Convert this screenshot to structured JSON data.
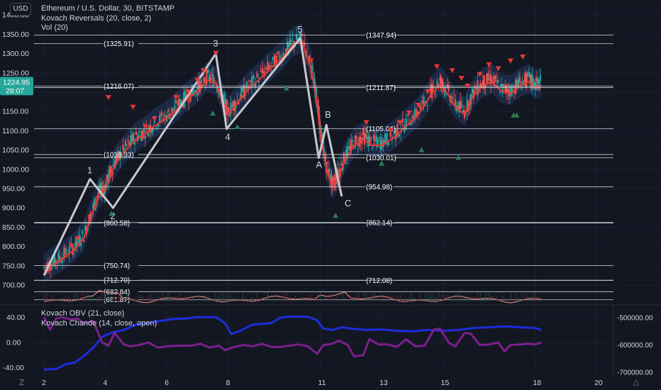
{
  "header": {
    "currency": "USD",
    "title": "Ethereum / U.S. Dollar, 30, BITSTAMP",
    "indicator_1": "Kovach Reversals (20, close, 2)",
    "indicator_2": "Vol (20)"
  },
  "lower_pane": {
    "indicator_1": "Kovach OBV (21, close)",
    "indicator_2": "Kovach Chande (14, close, open)"
  },
  "price_badge": {
    "price": "1224.95",
    "countdown": "28:07"
  },
  "bottom_icons": {
    "left": "Z",
    "right": "△"
  },
  "colors": {
    "background": "#131722",
    "candle_up": "#26a69a",
    "candle_down": "#ef5350",
    "band_fill": "#2a4a86",
    "moving_average": "#e53935",
    "wave_line": "#c8c8cc",
    "volume_line": "#e0837a",
    "obv_line": "#1e2ddb",
    "chande_line": "#7a1f8c",
    "price_badge": "#26a69a"
  },
  "chart_data": [
    {
      "type": "candlestick",
      "title": "Ethereum / U.S. Dollar, 30, BITSTAMP",
      "x_ticks": [
        "2",
        "4",
        "6",
        "8",
        "11",
        "13",
        "15",
        "18",
        "20"
      ],
      "y_ticks": [
        "700.00",
        "750.00",
        "800.00",
        "850.00",
        "900.00",
        "950.00",
        "1000.00",
        "1050.00",
        "1100.00",
        "1150.00",
        "1200.00",
        "1250.00",
        "1300.00",
        "1350.00",
        "1400.00"
      ],
      "ylim": [
        640,
        1405
      ],
      "last_price": 1224.95,
      "price_trend": [
        [
          2,
          745
        ],
        [
          2.3,
          760
        ],
        [
          2.6,
          775
        ],
        [
          3,
          800
        ],
        [
          3.3,
          830
        ],
        [
          3.6,
          900
        ],
        [
          3.8,
          940
        ],
        [
          4.0,
          955
        ],
        [
          4.2,
          1000
        ],
        [
          4.4,
          1030
        ],
        [
          4.7,
          1060
        ],
        [
          5.0,
          1085
        ],
        [
          5.3,
          1100
        ],
        [
          5.6,
          1120
        ],
        [
          6.0,
          1140
        ],
        [
          6.3,
          1160
        ],
        [
          6.6,
          1185
        ],
        [
          7.0,
          1210
        ],
        [
          7.3,
          1240
        ],
        [
          7.6,
          1230
        ],
        [
          7.8,
          1190
        ],
        [
          8.0,
          1150
        ],
        [
          8.3,
          1180
        ],
        [
          8.6,
          1210
        ],
        [
          9.0,
          1240
        ],
        [
          9.4,
          1270
        ],
        [
          9.8,
          1300
        ],
        [
          10.1,
          1330
        ],
        [
          10.4,
          1340
        ],
        [
          10.7,
          1270
        ],
        [
          10.9,
          1180
        ],
        [
          11.0,
          1100
        ],
        [
          11.2,
          1010
        ],
        [
          11.4,
          960
        ],
        [
          11.6,
          990
        ],
        [
          11.8,
          1030
        ],
        [
          12.1,
          1070
        ],
        [
          12.4,
          1085
        ],
        [
          12.7,
          1070
        ],
        [
          13.0,
          1070
        ],
        [
          13.4,
          1090
        ],
        [
          13.8,
          1120
        ],
        [
          14.2,
          1150
        ],
        [
          14.6,
          1200
        ],
        [
          14.9,
          1230
        ],
        [
          15.1,
          1210
        ],
        [
          15.4,
          1170
        ],
        [
          15.7,
          1150
        ],
        [
          16.0,
          1200
        ],
        [
          16.3,
          1225
        ],
        [
          16.6,
          1235
        ],
        [
          16.9,
          1210
        ],
        [
          17.2,
          1205
        ],
        [
          17.5,
          1225
        ],
        [
          17.8,
          1235
        ],
        [
          18.0,
          1220
        ],
        [
          18.2,
          1225
        ]
      ],
      "horizontal_levels": [
        {
          "label": "(1347.94)",
          "value": 1347.94
        },
        {
          "label": "(1325.91)",
          "value": 1325.91
        },
        {
          "label": "(1216.07)",
          "value": 1216.07
        },
        {
          "label": "(1211.87)",
          "value": 1211.87
        },
        {
          "label": "(1105.04)",
          "value": 1105.04
        },
        {
          "label": "(1038.33)",
          "value": 1038.33
        },
        {
          "label": "(1030.01)",
          "value": 1030.01
        },
        {
          "label": "(954.98)",
          "value": 954.98
        },
        {
          "label": "(862.14)",
          "value": 862.14
        },
        {
          "label": "(860.58)",
          "value": 860.58
        },
        {
          "label": "(750.74)",
          "value": 750.74
        },
        {
          "label": "(712.70)",
          "value": 712.7
        },
        {
          "label": "(712.08)",
          "value": 712.08
        },
        {
          "label": "(682.84)",
          "value": 682.84
        },
        {
          "label": "(661.87)",
          "value": 661.87
        }
      ],
      "waves": [
        {
          "label": "",
          "x": 2.0,
          "y": 725
        },
        {
          "label": "1",
          "x": 3.5,
          "y": 975
        },
        {
          "label": "2",
          "x": 4.25,
          "y": 900
        },
        {
          "label": "3",
          "x": 7.6,
          "y": 1300
        },
        {
          "label": "4",
          "x": 7.95,
          "y": 1105
        },
        {
          "label": "5",
          "x": 10.35,
          "y": 1340
        },
        {
          "label": "A",
          "x": 10.95,
          "y": 1030
        },
        {
          "label": "B",
          "x": 11.2,
          "y": 1115
        },
        {
          "label": "C",
          "x": 11.7,
          "y": 930
        }
      ],
      "sell_markers": [
        [
          2.9,
          800
        ],
        [
          3.1,
          820
        ],
        [
          4.1,
          1185
        ],
        [
          4.9,
          1160
        ],
        [
          5.3,
          1110
        ],
        [
          5.6,
          1130
        ],
        [
          6.3,
          1185
        ],
        [
          6.7,
          1200
        ],
        [
          7.0,
          1230
        ],
        [
          7.2,
          1255
        ],
        [
          7.6,
          1300
        ],
        [
          10.7,
          1280
        ],
        [
          12.5,
          1120
        ],
        [
          13.3,
          1100
        ],
        [
          13.6,
          1120
        ],
        [
          13.9,
          1145
        ],
        [
          14.2,
          1165
        ],
        [
          14.5,
          1200
        ],
        [
          14.8,
          1265
        ],
        [
          15.3,
          1255
        ],
        [
          15.6,
          1235
        ],
        [
          15.8,
          1215
        ],
        [
          16.2,
          1245
        ],
        [
          16.5,
          1270
        ],
        [
          16.8,
          1260
        ],
        [
          17.2,
          1280
        ],
        [
          17.6,
          1290
        ]
      ],
      "buy_markers": [
        [
          4.2,
          885
        ],
        [
          7.5,
          1145
        ],
        [
          8.3,
          1110
        ],
        [
          9.9,
          1210
        ],
        [
          11.5,
          880
        ],
        [
          13.0,
          1015
        ],
        [
          14.3,
          1050
        ],
        [
          15.5,
          1030
        ],
        [
          17.3,
          1140
        ],
        [
          17.4,
          1140
        ]
      ]
    },
    {
      "type": "line",
      "title": "Vol (20)",
      "note": "volume moving average drawn near price 640–720 band"
    },
    {
      "type": "line",
      "title": "Kovach OBV (21, close) / Kovach Chande (14, close, open)",
      "left_y_ticks": [
        "40.00",
        "0.00",
        "-40.00"
      ],
      "left_ylim": [
        -45,
        45
      ],
      "right_y_ticks": [
        "-500000.00",
        "-600000.00",
        "-700000.00"
      ],
      "right_ylim": [
        -710000,
        -490000
      ],
      "series": [
        {
          "name": "Kovach OBV (21, close)",
          "axis": "right",
          "values": [
            [
              2,
              -690000
            ],
            [
              2.4,
              -688000
            ],
            [
              2.7,
              -670000
            ],
            [
              3.0,
              -665000
            ],
            [
              3.3,
              -640000
            ],
            [
              3.6,
              -610000
            ],
            [
              3.9,
              -570000
            ],
            [
              4.2,
              -555000
            ],
            [
              4.6,
              -545000
            ],
            [
              5.0,
              -525000
            ],
            [
              5.4,
              -520000
            ],
            [
              5.8,
              -512000
            ],
            [
              6.2,
              -505000
            ],
            [
              6.6,
              -503000
            ],
            [
              7.0,
              -498000
            ],
            [
              7.6,
              -498000
            ],
            [
              7.9,
              -520000
            ],
            [
              8.1,
              -560000
            ],
            [
              8.4,
              -548000
            ],
            [
              8.8,
              -525000
            ],
            [
              9.4,
              -520000
            ],
            [
              9.7,
              -500000
            ],
            [
              10.0,
              -496000
            ],
            [
              10.6,
              -497000
            ],
            [
              10.9,
              -510000
            ],
            [
              11.1,
              -540000
            ],
            [
              11.4,
              -545000
            ],
            [
              11.7,
              -535000
            ],
            [
              12.0,
              -540000
            ],
            [
              12.5,
              -545000
            ],
            [
              13.0,
              -543000
            ],
            [
              13.5,
              -548000
            ],
            [
              14.0,
              -550000
            ],
            [
              14.5,
              -545000
            ],
            [
              15.0,
              -548000
            ],
            [
              15.5,
              -545000
            ],
            [
              16.0,
              -538000
            ],
            [
              16.5,
              -535000
            ],
            [
              17.0,
              -532000
            ],
            [
              17.5,
              -535000
            ],
            [
              18.0,
              -538000
            ],
            [
              18.2,
              -545000
            ]
          ]
        },
        {
          "name": "Kovach Chande (14, close, open)",
          "axis": "left",
          "values": [
            [
              2,
              40
            ],
            [
              2.2,
              20
            ],
            [
              2.4,
              38
            ],
            [
              2.6,
              40
            ],
            [
              2.9,
              36
            ],
            [
              3.1,
              38
            ],
            [
              3.3,
              30
            ],
            [
              3.6,
              34
            ],
            [
              3.9,
              0
            ],
            [
              4.1,
              -5
            ],
            [
              4.3,
              15
            ],
            [
              4.6,
              -3
            ],
            [
              4.8,
              -6
            ],
            [
              5.1,
              -4
            ],
            [
              5.4,
              0
            ],
            [
              5.7,
              -8
            ],
            [
              6.0,
              -6
            ],
            [
              6.4,
              -5
            ],
            [
              6.8,
              -5
            ],
            [
              7.1,
              -2
            ],
            [
              7.4,
              -8
            ],
            [
              7.7,
              -5
            ],
            [
              7.9,
              -12
            ],
            [
              8.2,
              -7
            ],
            [
              8.5,
              -4
            ],
            [
              8.8,
              -6
            ],
            [
              9.1,
              -2
            ],
            [
              9.4,
              -7
            ],
            [
              9.7,
              -7
            ],
            [
              10.0,
              -5
            ],
            [
              10.3,
              -3
            ],
            [
              10.6,
              -6
            ],
            [
              10.9,
              -18
            ],
            [
              11.1,
              -4
            ],
            [
              11.4,
              -2
            ],
            [
              11.6,
              3
            ],
            [
              11.9,
              -4
            ],
            [
              12.1,
              -22
            ],
            [
              12.4,
              -20
            ],
            [
              12.6,
              5
            ],
            [
              12.9,
              -3
            ],
            [
              13.2,
              -3
            ],
            [
              13.5,
              -7
            ],
            [
              13.8,
              5
            ],
            [
              14.1,
              -6
            ],
            [
              14.4,
              -5
            ],
            [
              14.7,
              20
            ],
            [
              14.9,
              22
            ],
            [
              15.2,
              -1
            ],
            [
              15.4,
              -6
            ],
            [
              15.7,
              15
            ],
            [
              15.9,
              14
            ],
            [
              16.2,
              -4
            ],
            [
              16.5,
              -3
            ],
            [
              16.8,
              0
            ],
            [
              17.0,
              -14
            ],
            [
              17.2,
              -4
            ],
            [
              17.5,
              -3
            ],
            [
              17.8,
              -2
            ],
            [
              18.0,
              -3
            ],
            [
              18.2,
              0
            ]
          ]
        }
      ]
    }
  ]
}
